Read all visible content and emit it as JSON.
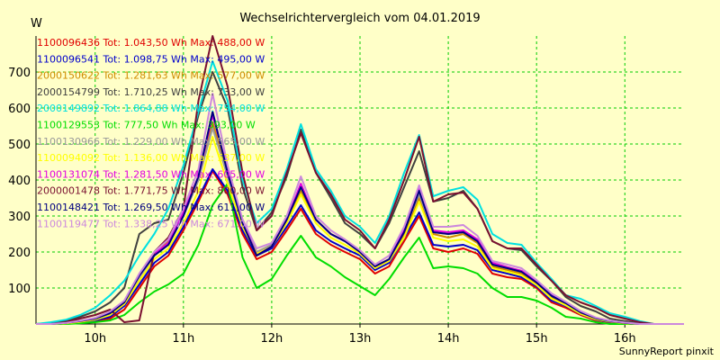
{
  "chart_data": {
    "type": "line",
    "title": "Wechselrichtervergleich vom 04.01.2019",
    "ylabel": "W",
    "xlabel": "",
    "credit": "SunnyReport pinxit",
    "x_ticks": [
      "10h",
      "11h",
      "12h",
      "13h",
      "14h",
      "15h",
      "16h"
    ],
    "y_ticks": [
      100,
      200,
      300,
      400,
      500,
      600,
      700
    ],
    "x_range": [
      9.33,
      16.67
    ],
    "y_range": [
      0,
      800
    ],
    "grid": true,
    "legend_position": "top-left",
    "x": [
      9.33,
      9.5,
      9.67,
      9.83,
      10.0,
      10.17,
      10.33,
      10.5,
      10.67,
      10.83,
      11.0,
      11.17,
      11.33,
      11.5,
      11.67,
      11.83,
      12.0,
      12.17,
      12.33,
      12.5,
      12.67,
      12.83,
      13.0,
      13.17,
      13.33,
      13.5,
      13.67,
      13.83,
      14.0,
      14.17,
      14.33,
      14.5,
      14.67,
      14.83,
      15.0,
      15.17,
      15.33,
      15.5,
      15.67,
      15.83,
      16.0,
      16.17,
      16.33,
      16.5,
      16.67
    ],
    "series": [
      {
        "name": "1100096436",
        "legend": "1100096436 Tot: 1.043,50 Wh Max: 488,00 W",
        "color": "#e00000",
        "values": [
          0,
          0,
          2,
          5,
          8,
          15,
          40,
          100,
          160,
          190,
          260,
          340,
          425,
          360,
          250,
          180,
          200,
          260,
          320,
          250,
          220,
          200,
          180,
          140,
          160,
          230,
          300,
          210,
          200,
          210,
          195,
          140,
          130,
          125,
          100,
          60,
          45,
          25,
          10,
          5,
          2,
          0,
          0,
          0,
          0
        ]
      },
      {
        "name": "1100096541",
        "legend": "1100096541 Tot: 1.098,75 Wh Max: 495,00 W",
        "color": "#0000cc",
        "values": [
          0,
          0,
          2,
          5,
          10,
          20,
          50,
          110,
          170,
          200,
          270,
          350,
          430,
          370,
          260,
          190,
          210,
          270,
          330,
          260,
          230,
          210,
          190,
          150,
          170,
          240,
          310,
          220,
          215,
          220,
          205,
          150,
          140,
          130,
          105,
          65,
          50,
          28,
          12,
          6,
          2,
          0,
          0,
          0,
          0
        ]
      },
      {
        "name": "2000150622",
        "legend": "2000150622 Tot: 1.281,63 Wh Max: 577,00 W",
        "color": "#d08c00",
        "values": [
          0,
          0,
          3,
          8,
          15,
          30,
          60,
          130,
          190,
          230,
          300,
          400,
          560,
          420,
          290,
          200,
          220,
          290,
          370,
          290,
          250,
          230,
          200,
          160,
          180,
          250,
          350,
          250,
          240,
          250,
          225,
          160,
          150,
          140,
          110,
          75,
          55,
          30,
          15,
          8,
          3,
          0,
          0,
          0,
          0
        ]
      },
      {
        "name": "2000154799",
        "legend": "2000154799 Tot: 1.710,25 Wh Max: 733,00 W",
        "color": "#404040",
        "values": [
          0,
          3,
          8,
          20,
          35,
          60,
          100,
          250,
          280,
          290,
          420,
          580,
          700,
          600,
          380,
          260,
          310,
          410,
          540,
          420,
          350,
          280,
          250,
          210,
          280,
          380,
          480,
          340,
          350,
          370,
          320,
          230,
          210,
          205,
          160,
          120,
          75,
          50,
          35,
          15,
          8,
          2,
          0,
          0,
          0
        ]
      },
      {
        "name": "2000149892",
        "legend": "2000149892 Tot: 1.864,88 Wh Max: 754,00 W",
        "color": "#00e0e0",
        "values": [
          0,
          5,
          12,
          25,
          45,
          80,
          120,
          190,
          250,
          320,
          440,
          590,
          730,
          620,
          400,
          280,
          320,
          430,
          555,
          430,
          370,
          300,
          270,
          225,
          300,
          420,
          525,
          355,
          370,
          380,
          345,
          250,
          225,
          220,
          170,
          125,
          80,
          70,
          50,
          30,
          20,
          8,
          0,
          0,
          0
        ]
      },
      {
        "name": "1100129553",
        "legend": "1100129553 Tot: 777,50 Wh Max: 393,00 W",
        "color": "#00dd00",
        "values": [
          0,
          0,
          0,
          2,
          5,
          10,
          25,
          60,
          90,
          110,
          140,
          220,
          330,
          390,
          185,
          100,
          125,
          190,
          245,
          185,
          160,
          130,
          105,
          80,
          125,
          185,
          240,
          155,
          160,
          155,
          140,
          100,
          75,
          75,
          65,
          45,
          20,
          15,
          5,
          0,
          0,
          0,
          0,
          0,
          0
        ]
      },
      {
        "name": "1100130966",
        "legend": "1100130966 Tot: 1.229,00 Wh Max: 565,00 W",
        "color": "#999999",
        "values": [
          0,
          0,
          3,
          8,
          15,
          30,
          60,
          130,
          190,
          220,
          300,
          400,
          545,
          410,
          280,
          200,
          220,
          290,
          380,
          290,
          250,
          230,
          200,
          160,
          180,
          260,
          360,
          255,
          250,
          255,
          230,
          165,
          155,
          145,
          115,
          78,
          58,
          32,
          16,
          8,
          3,
          0,
          0,
          0,
          0
        ]
      },
      {
        "name": "1100094092",
        "legend": "1100094092 Tot: 1.136,00 Wh Max: 537,00 W",
        "color": "#ffff00",
        "values": [
          0,
          0,
          2,
          6,
          12,
          25,
          55,
          120,
          180,
          210,
          280,
          370,
          520,
          390,
          270,
          195,
          215,
          280,
          360,
          280,
          240,
          220,
          195,
          155,
          175,
          240,
          340,
          240,
          230,
          235,
          215,
          155,
          145,
          135,
          108,
          70,
          52,
          28,
          13,
          7,
          2,
          0,
          0,
          0,
          0
        ]
      },
      {
        "name": "1100131074",
        "legend": "1100131074 Tot: 1.281,50 Wh Max: 605,00 W",
        "color": "#e000e0",
        "values": [
          0,
          0,
          3,
          8,
          15,
          32,
          62,
          135,
          195,
          225,
          310,
          410,
          580,
          430,
          285,
          190,
          215,
          290,
          390,
          290,
          250,
          230,
          200,
          160,
          180,
          260,
          380,
          260,
          255,
          260,
          235,
          170,
          158,
          148,
          118,
          80,
          60,
          33,
          17,
          9,
          3,
          0,
          0,
          0,
          0
        ]
      },
      {
        "name": "2000001478",
        "legend": "2000001478 Tot: 1.771,75 Wh Max: 800,00 W",
        "color": "#7a1030",
        "values": [
          0,
          0,
          5,
          15,
          25,
          40,
          5,
          10,
          200,
          240,
          320,
          620,
          800,
          660,
          420,
          260,
          300,
          420,
          530,
          420,
          360,
          290,
          260,
          210,
          290,
          400,
          520,
          340,
          360,
          365,
          320,
          230,
          210,
          210,
          165,
          120,
          80,
          60,
          45,
          25,
          15,
          5,
          0,
          0,
          0
        ]
      },
      {
        "name": "1100148421",
        "legend": "1100148421 Tot: 1.269,50 Wh Max: 611,00 W",
        "color": "#000080",
        "values": [
          0,
          0,
          3,
          8,
          15,
          30,
          60,
          135,
          190,
          220,
          300,
          410,
          590,
          420,
          280,
          190,
          215,
          290,
          380,
          290,
          250,
          230,
          200,
          160,
          180,
          255,
          370,
          255,
          250,
          255,
          230,
          165,
          155,
          145,
          115,
          78,
          58,
          32,
          16,
          8,
          3,
          0,
          0,
          0,
          0
        ]
      },
      {
        "name": "1100119477",
        "legend": "1100119477 Tot: 1.338,25 Wh Max: 671,00 W",
        "color": "#cc88dd",
        "values": [
          0,
          0,
          3,
          9,
          17,
          35,
          65,
          140,
          200,
          235,
          320,
          430,
          640,
          440,
          290,
          210,
          225,
          300,
          410,
          300,
          260,
          235,
          205,
          165,
          190,
          270,
          385,
          270,
          270,
          275,
          245,
          175,
          165,
          155,
          122,
          85,
          62,
          36,
          18,
          9,
          4,
          0,
          0,
          0,
          0
        ]
      }
    ]
  }
}
